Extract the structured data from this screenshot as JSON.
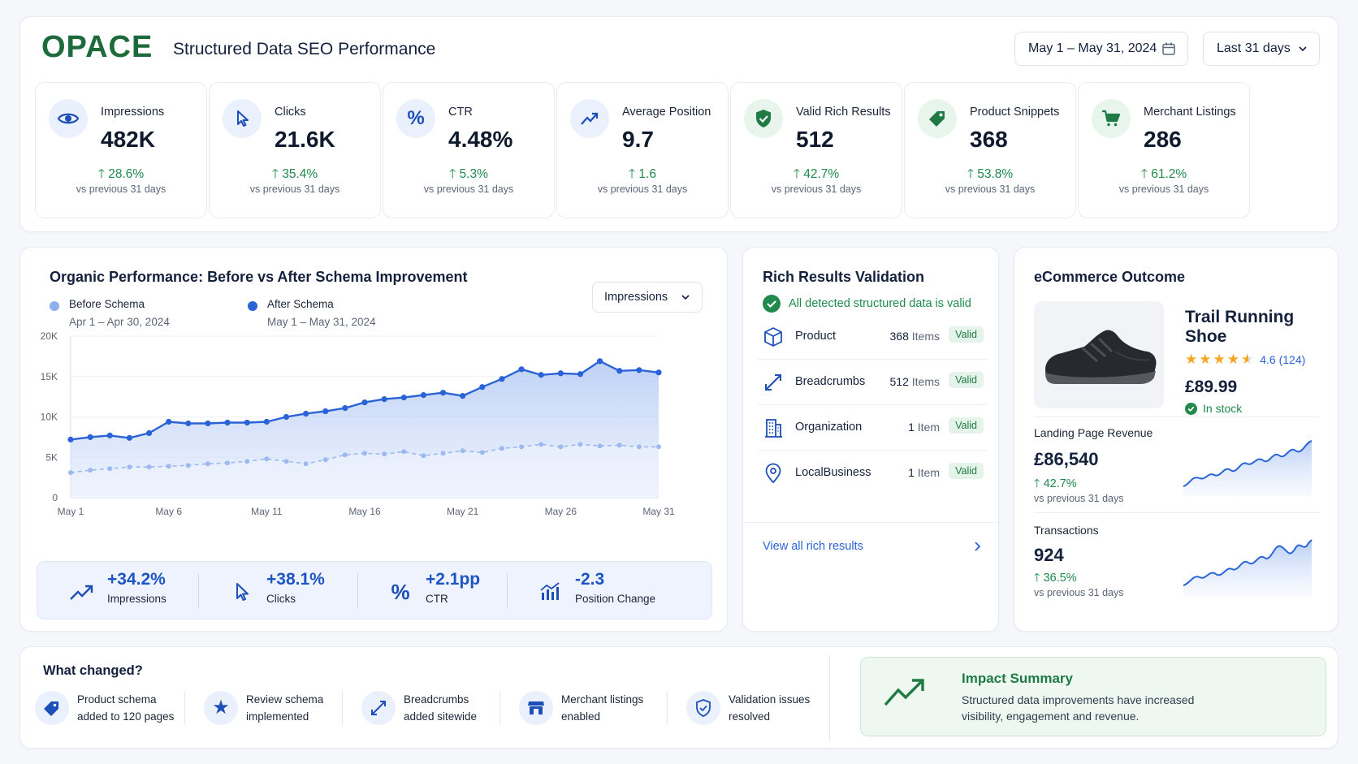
{
  "header": {
    "logo": "OPACE",
    "title": "Structured Data SEO Performance",
    "date_range": "May 1 – May 31, 2024",
    "period": "Last 31 days"
  },
  "kpis": [
    {
      "label": "Impressions",
      "value": "482K",
      "change": "28.6%",
      "compare": "vs previous 31 days",
      "icon": "eye-icon"
    },
    {
      "label": "Clicks",
      "value": "21.6K",
      "change": "35.4%",
      "compare": "vs previous 31 days",
      "icon": "cursor-icon"
    },
    {
      "label": "CTR",
      "value": "4.48%",
      "change": "5.3%",
      "compare": "vs previous 31 days",
      "icon": "percent-icon"
    },
    {
      "label": "Average Position",
      "value": "9.7",
      "change": "1.6",
      "compare": "vs previous 31 days",
      "icon": "trend-icon"
    },
    {
      "label": "Valid Rich Results",
      "value": "512",
      "change": "42.7%",
      "compare": "vs previous 31 days",
      "icon": "shield-check-icon"
    },
    {
      "label": "Product Snippets",
      "value": "368",
      "change": "53.8%",
      "compare": "vs previous 31 days",
      "icon": "tag-icon"
    },
    {
      "label": "Merchant Listings",
      "value": "286",
      "change": "61.2%",
      "compare": "vs previous 31 days",
      "icon": "cart-icon"
    }
  ],
  "performance": {
    "title": "Organic Performance: Before vs After Schema Improvement",
    "metric_select": "Impressions",
    "legend": [
      {
        "name": "Before Schema",
        "dates": "Apr 1 – Apr 30, 2024",
        "color": "#8fb0ee"
      },
      {
        "name": "After Schema",
        "dates": "May 1 – May 31, 2024",
        "color": "#2a63d8"
      }
    ],
    "summary": [
      {
        "value": "+34.2%",
        "label": "Impressions",
        "icon": "trend-up-icon"
      },
      {
        "value": "+38.1%",
        "label": "Clicks",
        "icon": "cursor-icon"
      },
      {
        "value": "+2.1pp",
        "label": "CTR",
        "icon": "percent-icon"
      },
      {
        "value": "-2.3",
        "label": "Position Change",
        "icon": "bar-chart-icon"
      }
    ]
  },
  "chart_data": {
    "type": "area",
    "x_tick_labels": [
      "May 1",
      "May 6",
      "May 11",
      "May 16",
      "May 21",
      "May 26",
      "May 31"
    ],
    "y_tick_labels": [
      "0",
      "5K",
      "10K",
      "15K",
      "20K"
    ],
    "ylim": [
      0,
      20000
    ],
    "series": [
      {
        "name": "Before Schema",
        "values": [
          3100,
          3400,
          3600,
          3800,
          3800,
          3900,
          4000,
          4200,
          4300,
          4500,
          4800,
          4500,
          4200,
          4700,
          5300,
          5500,
          5400,
          5700,
          5200,
          5500,
          5800,
          5600,
          6100,
          6300,
          6600,
          6300,
          6600,
          6400,
          6500,
          6300,
          6300
        ]
      },
      {
        "name": "After Schema",
        "values": [
          7200,
          7500,
          7700,
          7400,
          8000,
          9400,
          9200,
          9200,
          9300,
          9300,
          9400,
          10000,
          10400,
          10700,
          11100,
          11800,
          12200,
          12400,
          12700,
          13000,
          12600,
          13700,
          14700,
          15900,
          15200,
          15400,
          15300,
          16900,
          15700,
          15800,
          15500
        ]
      }
    ]
  },
  "rich_results": {
    "title": "Rich Results Validation",
    "status": "All detected structured data is valid",
    "rows": [
      {
        "name": "Product",
        "count": "368",
        "unit": "Items",
        "badge": "Valid",
        "icon": "cube-icon"
      },
      {
        "name": "Breadcrumbs",
        "count": "512",
        "unit": "Items",
        "badge": "Valid",
        "icon": "diagonal-arrows-icon"
      },
      {
        "name": "Organization",
        "count": "1",
        "unit": "Item",
        "badge": "Valid",
        "icon": "building-icon"
      },
      {
        "name": "LocalBusiness",
        "count": "1",
        "unit": "Item",
        "badge": "Valid",
        "icon": "location-pin-icon"
      }
    ],
    "link": "View all rich results"
  },
  "ecommerce": {
    "title": "eCommerce Outcome",
    "product_name": "Trail Running Shoe",
    "rating": "4.6 (124)",
    "stars": 4.6,
    "price": "£89.99",
    "stock": "In stock",
    "revenue": {
      "label": "Landing Page Revenue",
      "value": "£86,540",
      "change": "42.7%",
      "compare": "vs previous 31 days"
    },
    "transactions": {
      "label": "Transactions",
      "value": "924",
      "change": "36.5%",
      "compare": "vs previous 31 days"
    }
  },
  "changes": {
    "title": "What changed?",
    "items": [
      {
        "line1": "Product schema",
        "line2": "added to 120 pages",
        "icon": "tag-icon"
      },
      {
        "line1": "Review schema",
        "line2": "implemented",
        "icon": "star-icon"
      },
      {
        "line1": "Breadcrumbs",
        "line2": "added sitewide",
        "icon": "diagonal-arrows-icon"
      },
      {
        "line1": "Merchant listings",
        "line2": "enabled",
        "icon": "store-icon"
      },
      {
        "line1": "Validation issues",
        "line2": "resolved",
        "icon": "shield-check-icon"
      }
    ],
    "impact": {
      "title": "Impact Summary",
      "text": "Structured data improvements have increased visibility, engagement and revenue."
    }
  },
  "colors": {
    "brand": "#1d6b3b",
    "accent": "#2a63d8",
    "positive": "#1f8a4c"
  }
}
